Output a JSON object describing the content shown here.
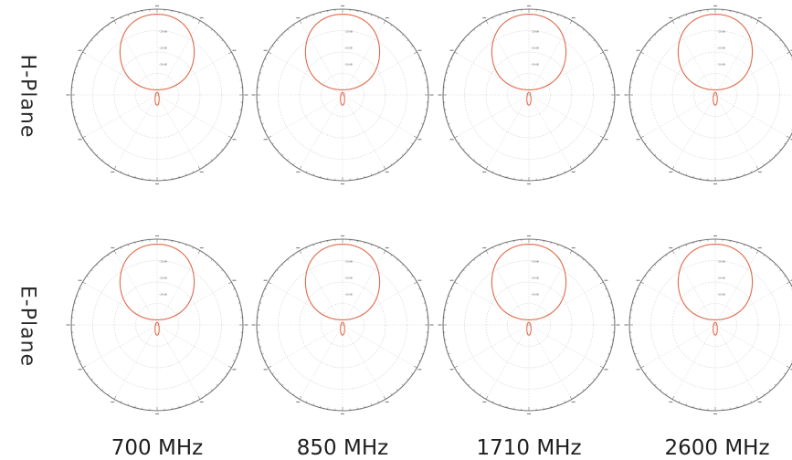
{
  "row_labels": [
    "H-Plane",
    "E-Plane"
  ],
  "freq_labels": [
    "700 MHz",
    "850 MHz",
    "1710 MHz",
    "2600 MHz"
  ],
  "colors": {
    "pattern": "#e06a4a",
    "outer_ring": "#777777",
    "grid": "#cfcfcf",
    "ticks": "#555555"
  },
  "chart_data": [
    {
      "type": "polar",
      "plane": "H-Plane",
      "frequency": "700 MHz",
      "ring_labels": [
        "-10dB",
        "-20dB",
        "-30dB"
      ],
      "pattern": {
        "main_lobe_radius": 0.45,
        "main_lobe_center_offset": 0.5,
        "back_lobe_length": 0.12
      }
    },
    {
      "type": "polar",
      "plane": "H-Plane",
      "frequency": "850 MHz",
      "ring_labels": [
        "-10dB",
        "-20dB",
        "-30dB"
      ],
      "pattern": {
        "main_lobe_radius": 0.45,
        "main_lobe_center_offset": 0.5,
        "back_lobe_length": 0.12
      }
    },
    {
      "type": "polar",
      "plane": "H-Plane",
      "frequency": "1710 MHz",
      "ring_labels": [
        "-10dB",
        "-20dB",
        "-30dB"
      ],
      "pattern": {
        "main_lobe_radius": 0.45,
        "main_lobe_center_offset": 0.5,
        "back_lobe_length": 0.12
      }
    },
    {
      "type": "polar",
      "plane": "H-Plane",
      "frequency": "2600 MHz",
      "ring_labels": [
        "-10dB",
        "-20dB",
        "-30dB"
      ],
      "pattern": {
        "main_lobe_radius": 0.45,
        "main_lobe_center_offset": 0.5,
        "back_lobe_length": 0.12
      }
    },
    {
      "type": "polar",
      "plane": "E-Plane",
      "frequency": "700 MHz",
      "ring_labels": [
        "-10dB",
        "-20dB",
        "-30dB"
      ],
      "pattern": {
        "main_lobe_radius": 0.45,
        "main_lobe_center_offset": 0.5,
        "back_lobe_length": 0.12
      }
    },
    {
      "type": "polar",
      "plane": "E-Plane",
      "frequency": "850 MHz",
      "ring_labels": [
        "-10dB",
        "-20dB",
        "-30dB"
      ],
      "pattern": {
        "main_lobe_radius": 0.45,
        "main_lobe_center_offset": 0.5,
        "back_lobe_length": 0.12
      }
    },
    {
      "type": "polar",
      "plane": "E-Plane",
      "frequency": "1710 MHz",
      "ring_labels": [
        "-10dB",
        "-20dB",
        "-30dB"
      ],
      "pattern": {
        "main_lobe_radius": 0.45,
        "main_lobe_center_offset": 0.5,
        "back_lobe_length": 0.12
      }
    },
    {
      "type": "polar",
      "plane": "E-Plane",
      "frequency": "2600 MHz",
      "ring_labels": [
        "-10dB",
        "-20dB",
        "-30dB"
      ],
      "pattern": {
        "main_lobe_radius": 0.45,
        "main_lobe_center_offset": 0.5,
        "back_lobe_length": 0.12
      }
    }
  ]
}
